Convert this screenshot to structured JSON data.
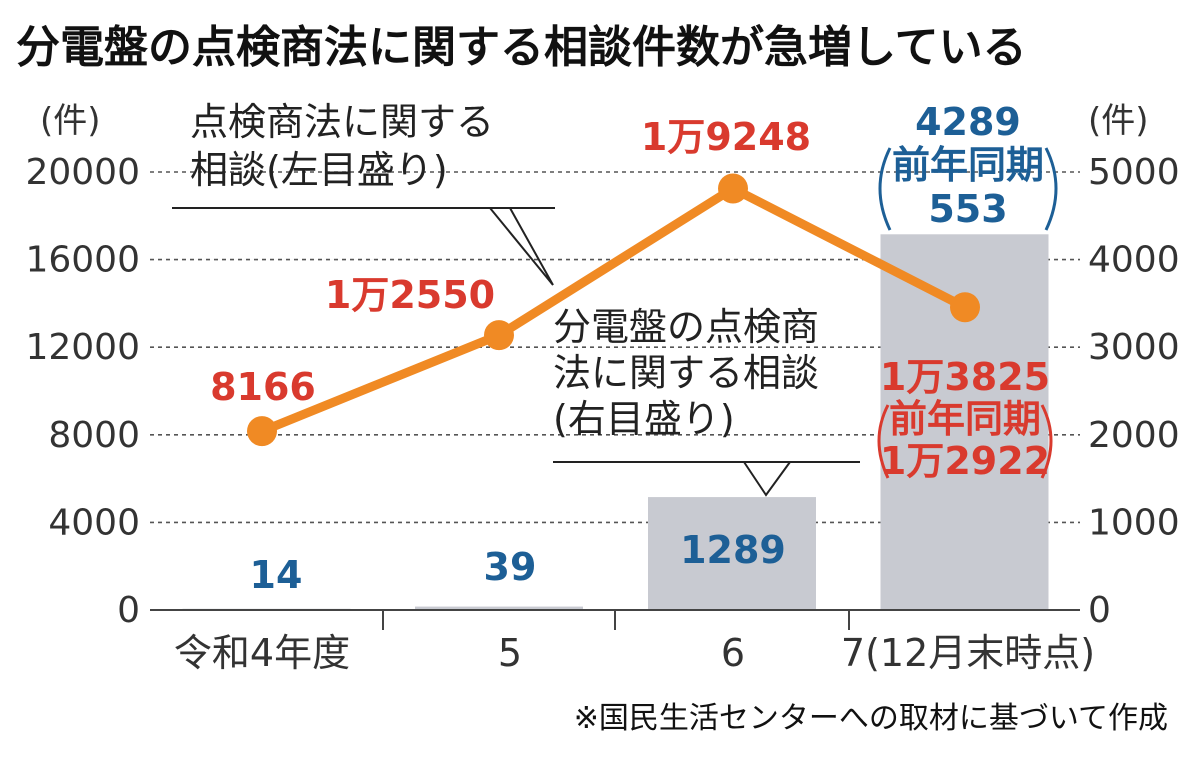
{
  "chart_data": {
    "type": "bar+line",
    "title": "分電盤の点検商法に関する相談件数が急増している",
    "categories": [
      "令和4年度",
      "5",
      "6",
      "7(12月末時点)"
    ],
    "y_left": {
      "unit": "(件)",
      "ylim": [
        0,
        20000
      ],
      "ticks": [
        "0",
        "4000",
        "8000",
        "12000",
        "16000",
        "20000"
      ]
    },
    "y_right": {
      "unit": "(件)",
      "ylim": [
        0,
        5000
      ],
      "ticks": [
        "0",
        "1000",
        "2000",
        "3000",
        "4000",
        "5000"
      ]
    },
    "grid": true,
    "series": [
      {
        "kind": "line",
        "axis": "left",
        "color": "#f08a24",
        "label_lines": [
          "点検商法に関する",
          "相談(左目盛り)"
        ],
        "values": [
          8166,
          12550,
          19248,
          13825
        ],
        "data_labels": [
          "8166",
          "1万2550",
          "1万9248",
          "1万3825"
        ],
        "extra_labels": [
          "前年同期",
          "1万2922"
        ]
      },
      {
        "kind": "bar",
        "axis": "right",
        "color": "#c8cad1",
        "label_lines": [
          "分電盤の点検商",
          "法に関する相談",
          "(右目盛り)"
        ],
        "values": [
          14,
          39,
          1289,
          4289
        ],
        "data_labels": [
          "14",
          "39",
          "1289",
          "4289"
        ],
        "extra_labels": [
          "前年同期",
          "553"
        ]
      }
    ],
    "note": "※国民生活センターへの取材に基づいて作成"
  }
}
